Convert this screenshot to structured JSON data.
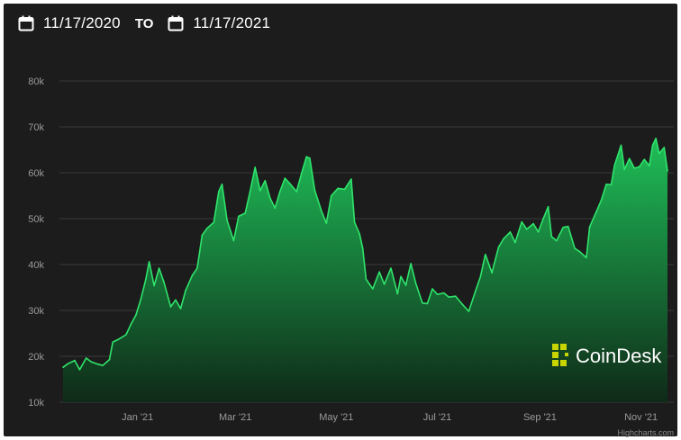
{
  "header": {
    "start_date": "11/17/2020",
    "to_label": "TO",
    "end_date": "11/17/2021",
    "calendar_icon": "calendar-icon"
  },
  "brand": {
    "name": "CoinDesk",
    "color": "#c8d400"
  },
  "credit": "Highcharts.com",
  "chart_data": {
    "type": "area",
    "title": "",
    "xlabel": "",
    "ylabel": "",
    "x_range": [
      "2020-11-17",
      "2021-11-17"
    ],
    "ylim": [
      10000,
      80000
    ],
    "y_ticks": [
      {
        "value": 10000,
        "label": "10k"
      },
      {
        "value": 20000,
        "label": "20k"
      },
      {
        "value": 30000,
        "label": "30k"
      },
      {
        "value": 40000,
        "label": "40k"
      },
      {
        "value": 50000,
        "label": "50k"
      },
      {
        "value": 60000,
        "label": "60k"
      },
      {
        "value": 70000,
        "label": "70k"
      },
      {
        "value": 80000,
        "label": "80k"
      }
    ],
    "x_ticks": [
      {
        "date": "2021-01-01",
        "label": "Jan '21"
      },
      {
        "date": "2021-03-01",
        "label": "Mar '21"
      },
      {
        "date": "2021-05-01",
        "label": "May '21"
      },
      {
        "date": "2021-07-01",
        "label": "Jul '21"
      },
      {
        "date": "2021-09-01",
        "label": "Sep '21"
      },
      {
        "date": "2021-11-01",
        "label": "Nov '21"
      }
    ],
    "grid": true,
    "colors": {
      "line": "#2fe46b",
      "fill_top": "#1fbf58",
      "fill_bottom": "#0f2a18"
    },
    "series": [
      {
        "points": [
          [
            "2020-11-17",
            17600
          ],
          [
            "2020-11-20",
            18400
          ],
          [
            "2020-11-24",
            19100
          ],
          [
            "2020-11-27",
            17100
          ],
          [
            "2020-12-01",
            19600
          ],
          [
            "2020-12-04",
            18800
          ],
          [
            "2020-12-08",
            18300
          ],
          [
            "2020-12-11",
            18000
          ],
          [
            "2020-12-15",
            19300
          ],
          [
            "2020-12-17",
            23100
          ],
          [
            "2020-12-21",
            23800
          ],
          [
            "2020-12-25",
            24700
          ],
          [
            "2020-12-28",
            27000
          ],
          [
            "2020-12-31",
            29000
          ],
          [
            "2021-01-03",
            32500
          ],
          [
            "2021-01-06",
            36800
          ],
          [
            "2021-01-08",
            40600
          ],
          [
            "2021-01-11",
            35400
          ],
          [
            "2021-01-14",
            39200
          ],
          [
            "2021-01-17",
            36100
          ],
          [
            "2021-01-21",
            30800
          ],
          [
            "2021-01-24",
            32300
          ],
          [
            "2021-01-27",
            30400
          ],
          [
            "2021-01-30",
            34300
          ],
          [
            "2021-02-03",
            37600
          ],
          [
            "2021-02-06",
            39200
          ],
          [
            "2021-02-09",
            46400
          ],
          [
            "2021-02-12",
            47900
          ],
          [
            "2021-02-16",
            49200
          ],
          [
            "2021-02-19",
            55900
          ],
          [
            "2021-02-21",
            57500
          ],
          [
            "2021-02-24",
            49700
          ],
          [
            "2021-02-28",
            45200
          ],
          [
            "2021-03-03",
            50500
          ],
          [
            "2021-03-07",
            51200
          ],
          [
            "2021-03-10",
            56000
          ],
          [
            "2021-03-13",
            61200
          ],
          [
            "2021-03-16",
            56100
          ],
          [
            "2021-03-19",
            58300
          ],
          [
            "2021-03-22",
            54500
          ],
          [
            "2021-03-25",
            52300
          ],
          [
            "2021-03-28",
            55900
          ],
          [
            "2021-03-31",
            58800
          ],
          [
            "2021-04-03",
            57600
          ],
          [
            "2021-04-07",
            55900
          ],
          [
            "2021-04-10",
            59800
          ],
          [
            "2021-04-13",
            63500
          ],
          [
            "2021-04-15",
            63200
          ],
          [
            "2021-04-18",
            56200
          ],
          [
            "2021-04-22",
            51700
          ],
          [
            "2021-04-25",
            49000
          ],
          [
            "2021-04-28",
            55000
          ],
          [
            "2021-05-02",
            56600
          ],
          [
            "2021-05-06",
            56400
          ],
          [
            "2021-05-10",
            58600
          ],
          [
            "2021-05-12",
            49200
          ],
          [
            "2021-05-15",
            46700
          ],
          [
            "2021-05-17",
            43500
          ],
          [
            "2021-05-19",
            36800
          ],
          [
            "2021-05-23",
            34700
          ],
          [
            "2021-05-27",
            38400
          ],
          [
            "2021-05-30",
            35700
          ],
          [
            "2021-06-03",
            39200
          ],
          [
            "2021-06-07",
            33600
          ],
          [
            "2021-06-09",
            37400
          ],
          [
            "2021-06-12",
            35500
          ],
          [
            "2021-06-15",
            40200
          ],
          [
            "2021-06-18",
            35900
          ],
          [
            "2021-06-22",
            31600
          ],
          [
            "2021-06-25",
            31500
          ],
          [
            "2021-06-28",
            34700
          ],
          [
            "2021-07-01",
            33500
          ],
          [
            "2021-07-05",
            33800
          ],
          [
            "2021-07-08",
            32900
          ],
          [
            "2021-07-12",
            33100
          ],
          [
            "2021-07-16",
            31400
          ],
          [
            "2021-07-20",
            29800
          ],
          [
            "2021-07-24",
            34200
          ],
          [
            "2021-07-27",
            37300
          ],
          [
            "2021-07-30",
            42200
          ],
          [
            "2021-08-03",
            38200
          ],
          [
            "2021-08-07",
            43800
          ],
          [
            "2021-08-10",
            45600
          ],
          [
            "2021-08-14",
            47100
          ],
          [
            "2021-08-17",
            44800
          ],
          [
            "2021-08-21",
            49300
          ],
          [
            "2021-08-24",
            47700
          ],
          [
            "2021-08-28",
            48900
          ],
          [
            "2021-08-31",
            47100
          ],
          [
            "2021-09-03",
            50000
          ],
          [
            "2021-09-06",
            52600
          ],
          [
            "2021-09-08",
            46100
          ],
          [
            "2021-09-11",
            45200
          ],
          [
            "2021-09-15",
            48100
          ],
          [
            "2021-09-18",
            48300
          ],
          [
            "2021-09-22",
            43500
          ],
          [
            "2021-09-25",
            42800
          ],
          [
            "2021-09-29",
            41500
          ],
          [
            "2021-10-01",
            48200
          ],
          [
            "2021-10-05",
            51500
          ],
          [
            "2021-10-08",
            54000
          ],
          [
            "2021-10-11",
            57500
          ],
          [
            "2021-10-14",
            57400
          ],
          [
            "2021-10-16",
            61600
          ],
          [
            "2021-10-20",
            66000
          ],
          [
            "2021-10-22",
            60700
          ],
          [
            "2021-10-25",
            63100
          ],
          [
            "2021-10-28",
            61000
          ],
          [
            "2021-10-31",
            61300
          ],
          [
            "2021-11-03",
            62900
          ],
          [
            "2021-11-06",
            61500
          ],
          [
            "2021-11-08",
            66000
          ],
          [
            "2021-11-10",
            67500
          ],
          [
            "2021-11-12",
            64200
          ],
          [
            "2021-11-15",
            65500
          ],
          [
            "2021-11-17",
            60400
          ]
        ]
      }
    ]
  }
}
